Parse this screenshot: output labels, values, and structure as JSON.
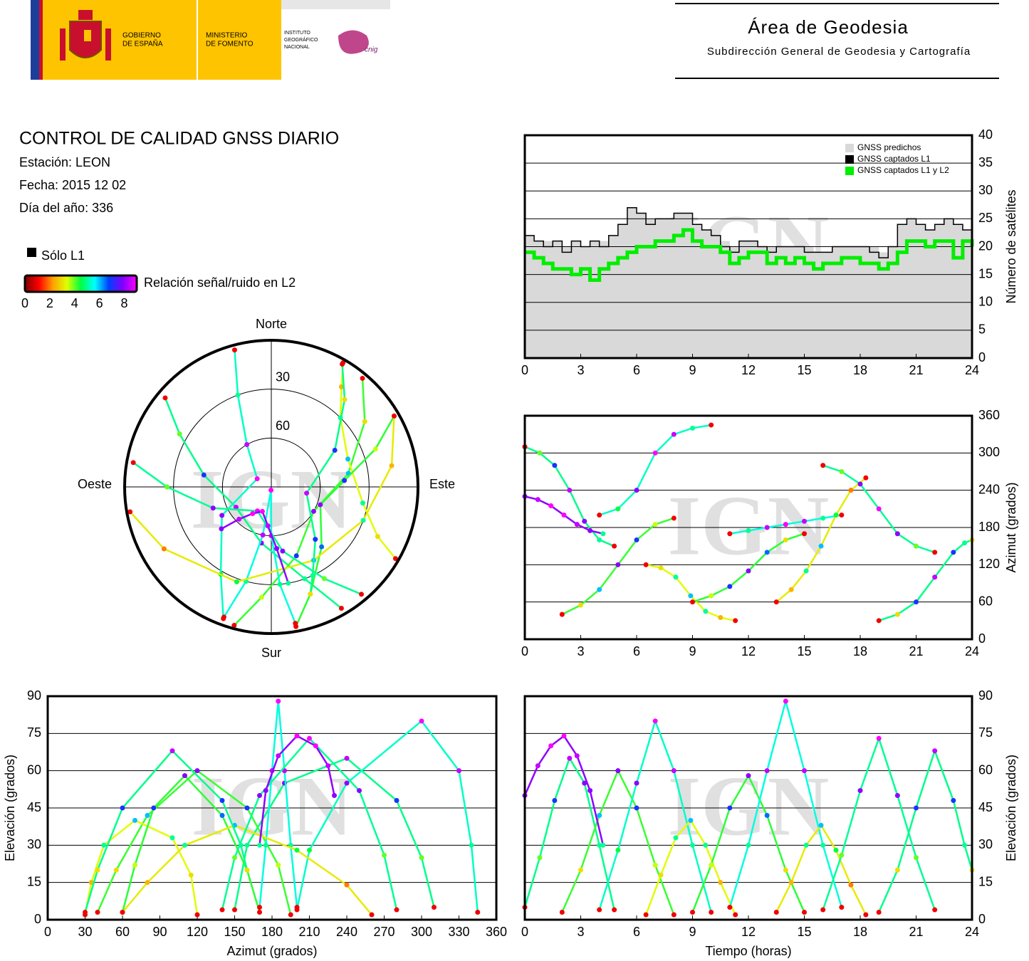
{
  "header": {
    "gobierno": [
      "GOBIERNO",
      "DE ESPAÑA"
    ],
    "ministerio": [
      "MINISTERIO",
      "DE FOMENTO"
    ],
    "instituto": [
      "INSTITUTO",
      "GEOGRÁFICO",
      "NACIONAL"
    ],
    "cnig": "cnig",
    "area": "Área de Geodesia",
    "subdireccion": "Subdirección General de Geodesia y Cartografía"
  },
  "info": {
    "title": "CONTROL DE CALIDAD GNSS DIARIO",
    "station": "Estación: LEON",
    "date": "Fecha: 2015 12 02",
    "doy": "Día del año: 336"
  },
  "snr_legend": {
    "only_l1": "Sólo L1",
    "only_l1_color": "#000000",
    "label": "Relación señal/ruido en L2",
    "lim": [
      0,
      9
    ],
    "ticks": [
      0,
      2,
      4,
      6,
      8
    ],
    "colormap": [
      "#800000",
      "#ff0000",
      "#ffa000",
      "#e0ff00",
      "#00ff40",
      "#00ffff",
      "#0040ff",
      "#8000ff",
      "#ff00ff"
    ]
  },
  "watermark": "IGN",
  "tracks": [
    {
      "time": [
        0,
        0.8,
        1.6,
        2.4,
        3.2,
        4,
        4.8
      ],
      "azimuth": [
        310,
        300,
        280,
        240,
        190,
        160,
        150
      ],
      "elevation": [
        5,
        25,
        48,
        65,
        55,
        30,
        4
      ],
      "snr": [
        1,
        4,
        7,
        8.5,
        8,
        5,
        1
      ]
    },
    {
      "time": [
        2,
        3,
        4,
        5,
        6,
        7,
        8
      ],
      "azimuth": [
        40,
        55,
        80,
        120,
        160,
        185,
        195
      ],
      "elevation": [
        3,
        20,
        42,
        60,
        45,
        22,
        2
      ],
      "snr": [
        1,
        3,
        6,
        8,
        7,
        3.5,
        1
      ]
    },
    {
      "time": [
        4,
        5,
        6,
        7,
        8,
        9,
        10
      ],
      "azimuth": [
        200,
        210,
        240,
        300,
        330,
        340,
        345
      ],
      "elevation": [
        4,
        28,
        55,
        80,
        60,
        30,
        3
      ],
      "snr": [
        1,
        4.5,
        8,
        9,
        8.5,
        5,
        1
      ]
    },
    {
      "time": [
        6.5,
        7.3,
        8.1,
        8.9,
        9.7,
        10.5,
        11.3
      ],
      "azimuth": [
        120,
        115,
        100,
        70,
        45,
        35,
        30
      ],
      "elevation": [
        2,
        18,
        33,
        40,
        30,
        15,
        2
      ],
      "snr": [
        1,
        3,
        5,
        6,
        5,
        2.5,
        1
      ]
    },
    {
      "time": [
        9,
        10,
        11,
        12,
        13,
        14,
        15
      ],
      "azimuth": [
        60,
        70,
        85,
        110,
        140,
        160,
        170
      ],
      "elevation": [
        3,
        22,
        45,
        58,
        42,
        20,
        3
      ],
      "snr": [
        1,
        3.5,
        7,
        8,
        6.5,
        3,
        1
      ]
    },
    {
      "time": [
        11,
        12,
        13,
        14,
        15,
        16,
        17
      ],
      "azimuth": [
        170,
        175,
        180,
        185,
        190,
        195,
        200
      ],
      "elevation": [
        5,
        30,
        60,
        88,
        60,
        30,
        5
      ],
      "snr": [
        1,
        5,
        8.5,
        9,
        8.5,
        5,
        1
      ]
    },
    {
      "time": [
        13.5,
        14.3,
        15.1,
        15.9,
        16.7,
        17.5,
        18.3
      ],
      "azimuth": [
        60,
        80,
        110,
        150,
        200,
        240,
        260
      ],
      "elevation": [
        3,
        15,
        30,
        38,
        28,
        14,
        2
      ],
      "snr": [
        1,
        2.5,
        5,
        6,
        4.5,
        2,
        1
      ]
    },
    {
      "time": [
        16,
        17,
        18,
        19,
        20,
        21,
        22
      ],
      "azimuth": [
        280,
        270,
        250,
        210,
        170,
        150,
        140
      ],
      "elevation": [
        4,
        26,
        52,
        73,
        50,
        25,
        4
      ],
      "snr": [
        1,
        4,
        8,
        9,
        8,
        4,
        1
      ]
    },
    {
      "time": [
        19,
        20,
        21,
        22,
        23,
        23.6,
        24
      ],
      "azimuth": [
        30,
        40,
        60,
        100,
        140,
        155,
        160
      ],
      "elevation": [
        3,
        20,
        45,
        68,
        48,
        30,
        20
      ],
      "snr": [
        1,
        3,
        7,
        8.5,
        7,
        5,
        3
      ]
    },
    {
      "time": [
        0,
        0.7,
        1.4,
        2.1,
        2.8,
        3.5,
        4.2
      ],
      "azimuth": [
        230,
        225,
        215,
        200,
        185,
        175,
        170
      ],
      "elevation": [
        50,
        62,
        70,
        74,
        66,
        52,
        30
      ],
      "snr": [
        8,
        8.5,
        9,
        9,
        8.5,
        8,
        5
      ]
    }
  ],
  "chart_data": [
    {
      "type": "step",
      "ylabel": "Número de satélites",
      "xlim": [
        0,
        24
      ],
      "xticks": [
        0,
        3,
        6,
        9,
        12,
        15,
        18,
        21,
        24
      ],
      "ylim": [
        0,
        40
      ],
      "yticks": [
        0,
        5,
        10,
        15,
        20,
        25,
        30,
        35,
        40
      ],
      "grid": true,
      "legend": "upper right",
      "x": [
        0,
        0.5,
        1,
        1.5,
        2,
        2.5,
        3,
        3.5,
        4,
        4.5,
        5,
        5.5,
        6,
        6.5,
        7,
        7.5,
        8,
        8.5,
        9,
        9.5,
        10,
        10.5,
        11,
        11.5,
        12,
        12.5,
        13,
        13.5,
        14,
        14.5,
        15,
        15.5,
        16,
        16.5,
        17,
        17.5,
        18,
        18.5,
        19,
        19.5,
        20,
        20.5,
        21,
        21.5,
        22,
        22.5,
        23,
        23.5,
        24
      ],
      "series": [
        {
          "name": "GNSS predichos",
          "color": "#d9d9d9",
          "fill": true,
          "values": [
            22,
            21,
            21,
            21,
            20,
            21,
            20,
            21,
            21,
            22,
            24,
            27,
            26,
            25,
            25,
            25,
            26,
            26,
            24,
            23,
            22,
            21,
            20,
            21,
            21,
            20,
            20,
            20,
            20,
            20,
            20,
            19,
            19,
            20,
            20,
            20,
            20,
            20,
            19,
            20,
            24,
            25,
            24,
            23,
            24,
            25,
            24,
            23,
            24
          ]
        },
        {
          "name": "GNSS captados L1",
          "color": "#000000",
          "fill": false,
          "values": [
            22,
            21,
            20,
            21,
            19,
            21,
            20,
            21,
            20,
            22,
            24,
            27,
            26,
            24,
            25,
            25,
            26,
            26,
            24,
            23,
            22,
            20,
            19,
            21,
            21,
            20,
            19,
            20,
            20,
            20,
            19,
            19,
            19,
            20,
            20,
            20,
            20,
            19,
            18,
            20,
            24,
            25,
            24,
            23,
            24,
            25,
            24,
            23,
            24
          ]
        },
        {
          "name": "GNSS captados L1 y L2",
          "color": "#00ee00",
          "fill": false,
          "values": [
            19,
            18,
            17,
            16,
            16,
            15,
            16,
            14,
            16,
            17,
            18,
            19,
            20,
            20,
            21,
            21,
            22,
            23,
            21,
            20,
            20,
            19,
            17,
            18,
            19,
            19,
            17,
            18,
            17,
            18,
            17,
            16,
            17,
            17,
            18,
            18,
            17,
            17,
            16,
            17,
            19,
            21,
            21,
            20,
            21,
            21,
            18,
            21,
            20
          ]
        }
      ]
    },
    {
      "type": "polar",
      "labels": {
        "north": "Norte",
        "south": "Sur",
        "east": "Este",
        "west": "Oeste"
      },
      "rlim": [
        90,
        0
      ],
      "rticks": [
        30,
        60
      ]
    },
    {
      "type": "tracks",
      "ylabel": "Azimut (grados)",
      "xlim": [
        0,
        24
      ],
      "xticks": [
        0,
        3,
        6,
        9,
        12,
        15,
        18,
        21,
        24
      ],
      "ylim": [
        0,
        360
      ],
      "yticks": [
        0,
        60,
        120,
        180,
        240,
        300,
        360
      ],
      "grid": true
    },
    {
      "type": "tracks",
      "xlabel": "Azimut (grados)",
      "ylabel": "Elevación (grados)",
      "xlim": [
        0,
        360
      ],
      "xticks": [
        0,
        30,
        60,
        90,
        120,
        150,
        180,
        210,
        240,
        270,
        300,
        330,
        360
      ],
      "ylim": [
        0,
        90
      ],
      "yticks": [
        0,
        15,
        30,
        45,
        60,
        75,
        90
      ],
      "grid": true
    },
    {
      "type": "tracks",
      "xlabel": "Tiempo (horas)",
      "ylabel": "Elevación (grados)",
      "xlim": [
        0,
        24
      ],
      "xticks": [
        0,
        3,
        6,
        9,
        12,
        15,
        18,
        21,
        24
      ],
      "ylim": [
        0,
        90
      ],
      "yticks": [
        0,
        15,
        30,
        45,
        60,
        75,
        90
      ],
      "grid": true
    }
  ]
}
